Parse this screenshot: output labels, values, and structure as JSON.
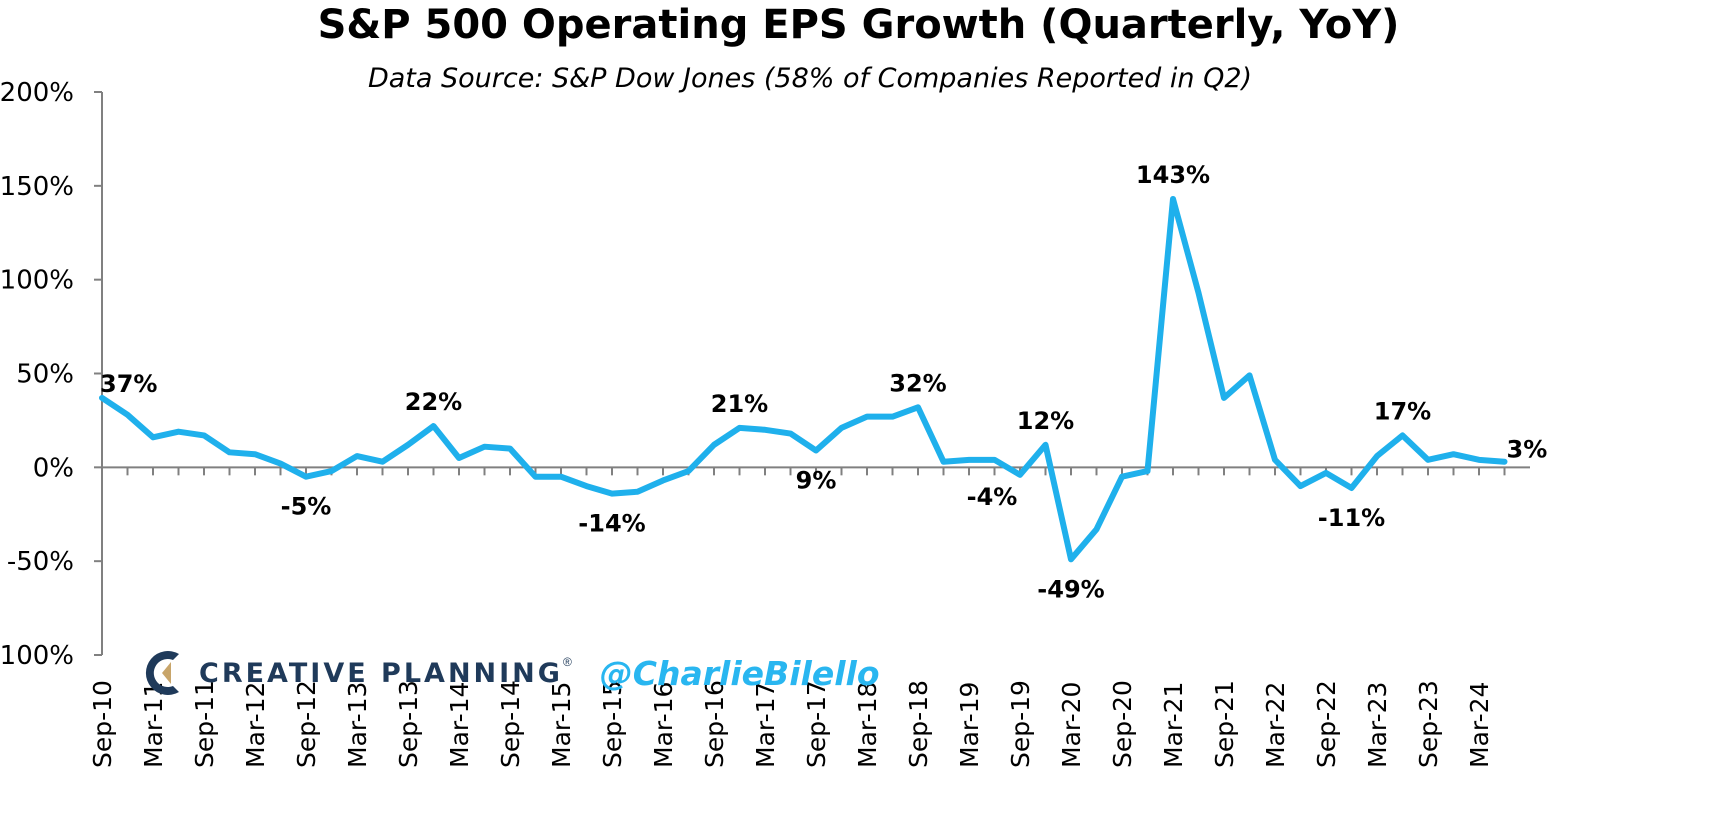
{
  "header": {
    "title": "S&P 500 Operating EPS Growth (Quarterly, YoY)",
    "subtitle": "Data Source: S&P Dow Jones (58% of Companies Reported in Q2)"
  },
  "branding": {
    "logo_text": "CREATIVE PLANNING",
    "logo_mark": "®",
    "handle": "@CharlieBilello",
    "logo_icon": "creative-planning-c-icon"
  },
  "colors": {
    "line": "#1fb0ec",
    "axis": "#808080",
    "text": "#000000",
    "brand_navy": "#1f3a5a",
    "brand_gold": "#c8a56a",
    "handle": "#29b6f0"
  },
  "chart_data": {
    "type": "line",
    "title": "S&P 500 Operating EPS Growth (Quarterly, YoY)",
    "subtitle": "Data Source: S&P Dow Jones (58% of Companies Reported in Q2)",
    "xlabel": "",
    "ylabel": "",
    "ylim": [
      -100,
      200
    ],
    "y_ticks": [
      200,
      150,
      100,
      50,
      0,
      -50,
      -100
    ],
    "y_tick_labels": [
      "200%",
      "150%",
      "100%",
      "50%",
      "0%",
      "-50%",
      "-100%"
    ],
    "x_tick_labels": [
      "Sep-10",
      "Mar-11",
      "Sep-11",
      "Mar-12",
      "Sep-12",
      "Mar-13",
      "Sep-13",
      "Mar-14",
      "Sep-14",
      "Mar-15",
      "Sep-15",
      "Mar-16",
      "Sep-16",
      "Mar-17",
      "Sep-17",
      "Mar-18",
      "Sep-18",
      "Mar-19",
      "Sep-19",
      "Mar-20",
      "Sep-20",
      "Mar-21",
      "Sep-21",
      "Mar-22",
      "Sep-22",
      "Mar-23",
      "Sep-23",
      "Mar-24"
    ],
    "grid": false,
    "legend": "none",
    "quarters": [
      "Sep-10",
      "Dec-10",
      "Mar-11",
      "Jun-11",
      "Sep-11",
      "Dec-11",
      "Mar-12",
      "Jun-12",
      "Sep-12",
      "Dec-12",
      "Mar-13",
      "Jun-13",
      "Sep-13",
      "Dec-13",
      "Mar-14",
      "Jun-14",
      "Sep-14",
      "Dec-14",
      "Mar-15",
      "Jun-15",
      "Sep-15",
      "Dec-15",
      "Mar-16",
      "Jun-16",
      "Sep-16",
      "Dec-16",
      "Mar-17",
      "Jun-17",
      "Sep-17",
      "Dec-17",
      "Mar-18",
      "Jun-18",
      "Sep-18",
      "Dec-18",
      "Mar-19",
      "Jun-19",
      "Sep-19",
      "Dec-19",
      "Mar-20",
      "Jun-20",
      "Sep-20",
      "Dec-20",
      "Mar-21",
      "Jun-21",
      "Sep-21",
      "Dec-21",
      "Mar-22",
      "Jun-22",
      "Sep-22",
      "Dec-22",
      "Mar-23",
      "Jun-23",
      "Sep-23",
      "Dec-23",
      "Mar-24",
      "Jun-24"
    ],
    "values": [
      37,
      28,
      16,
      19,
      17,
      8,
      7,
      2,
      -5,
      -2,
      6,
      3,
      12,
      22,
      5,
      11,
      10,
      -5,
      -5,
      -10,
      -14,
      -13,
      -7,
      -2,
      12,
      21,
      20,
      18,
      9,
      21,
      27,
      27,
      32,
      3,
      4,
      4,
      -4,
      12,
      -49,
      -33,
      -5,
      -2,
      143,
      93,
      37,
      49,
      4,
      -10,
      -3,
      -11,
      6,
      17,
      4,
      7,
      4,
      3
    ],
    "annotations": [
      {
        "index": 0,
        "label": "37%",
        "position": "above-right"
      },
      {
        "index": 8,
        "label": "-5%",
        "position": "below"
      },
      {
        "index": 13,
        "label": "22%",
        "position": "above"
      },
      {
        "index": 20,
        "label": "-14%",
        "position": "below"
      },
      {
        "index": 25,
        "label": "21%",
        "position": "above"
      },
      {
        "index": 28,
        "label": "9%",
        "position": "below"
      },
      {
        "index": 32,
        "label": "32%",
        "position": "above"
      },
      {
        "index": 36,
        "label": "-4%",
        "position": "below-left"
      },
      {
        "index": 37,
        "label": "12%",
        "position": "above"
      },
      {
        "index": 38,
        "label": "-49%",
        "position": "below"
      },
      {
        "index": 42,
        "label": "143%",
        "position": "above"
      },
      {
        "index": 49,
        "label": "-11%",
        "position": "below"
      },
      {
        "index": 51,
        "label": "17%",
        "position": "above"
      },
      {
        "index": 55,
        "label": "3%",
        "position": "right"
      }
    ]
  }
}
